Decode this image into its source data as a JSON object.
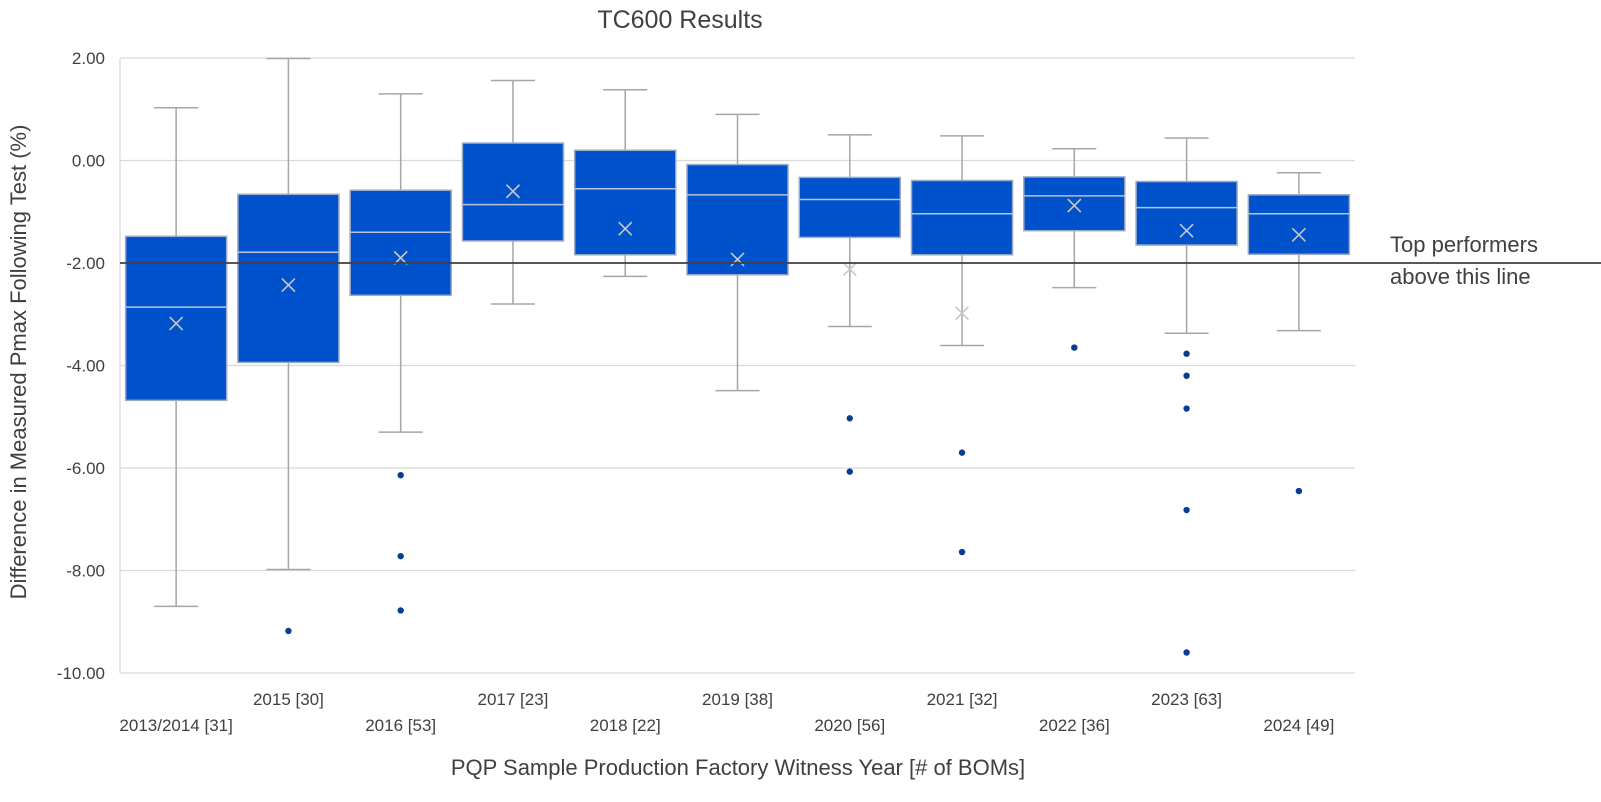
{
  "chart_data": {
    "type": "box",
    "title": "TC600 Results",
    "xlabel": "PQP Sample Production Factory Witness Year [# of BOMs]",
    "ylabel": "Difference in Measured Pmax Following Test (%)",
    "ylim": [
      -10,
      2
    ],
    "yticks": [
      "2.00",
      "0.00",
      "-2.00",
      "-4.00",
      "-6.00",
      "-8.00",
      "-10.00"
    ],
    "ytick_values": [
      2,
      0,
      -2,
      -4,
      -6,
      -8,
      -10
    ],
    "grid": true,
    "color": "#0052CC",
    "categories": [
      "2013/2014 [31]",
      "2015 [30]",
      "2016 [53]",
      "2017 [23]",
      "2018 [22]",
      "2019 [38]",
      "2020 [56]",
      "2021 [32]",
      "2022 [36]",
      "2023 [63]",
      "2024 [49]"
    ],
    "boxes": [
      {
        "whisker_low": -8.7,
        "q1": -4.68,
        "median": -2.86,
        "q3": -1.48,
        "whisker_high": 1.03,
        "mean": -3.18,
        "outliers": []
      },
      {
        "whisker_low": -7.98,
        "q1": -3.94,
        "median": -1.79,
        "q3": -0.66,
        "whisker_high": 1.99,
        "mean": -2.43,
        "outliers": [
          -9.18
        ]
      },
      {
        "whisker_low": -5.3,
        "q1": -2.63,
        "median": -1.4,
        "q3": -0.58,
        "whisker_high": 1.3,
        "mean": -1.9,
        "outliers": [
          -6.14,
          -7.72,
          -8.78
        ]
      },
      {
        "whisker_low": -2.8,
        "q1": -1.57,
        "median": -0.86,
        "q3": 0.34,
        "whisker_high": 1.56,
        "mean": -0.6,
        "outliers": []
      },
      {
        "whisker_low": -2.26,
        "q1": -1.84,
        "median": -0.55,
        "q3": 0.2,
        "whisker_high": 1.38,
        "mean": -1.33,
        "outliers": []
      },
      {
        "whisker_low": -4.49,
        "q1": -2.23,
        "median": -0.67,
        "q3": -0.08,
        "whisker_high": 0.9,
        "mean": -1.93,
        "outliers": []
      },
      {
        "whisker_low": -3.24,
        "q1": -1.5,
        "median": -0.76,
        "q3": -0.33,
        "whisker_high": 0.5,
        "mean": -2.12,
        "outliers": [
          -5.03,
          -6.07
        ]
      },
      {
        "whisker_low": -3.61,
        "q1": -1.84,
        "median": -1.04,
        "q3": -0.39,
        "whisker_high": 0.48,
        "mean": -2.98,
        "outliers": [
          -5.7,
          -7.64
        ]
      },
      {
        "whisker_low": -2.48,
        "q1": -1.37,
        "median": -0.69,
        "q3": -0.32,
        "whisker_high": 0.23,
        "mean": -0.88,
        "outliers": [
          -3.65
        ]
      },
      {
        "whisker_low": -3.37,
        "q1": -1.65,
        "median": -0.92,
        "q3": -0.41,
        "whisker_high": 0.44,
        "mean": -1.37,
        "outliers": [
          -3.77,
          -4.2,
          -4.84,
          -6.82,
          -9.6
        ]
      },
      {
        "whisker_low": -3.32,
        "q1": -1.83,
        "median": -1.04,
        "q3": -0.67,
        "whisker_high": -0.24,
        "mean": -1.45,
        "outliers": [
          -6.45
        ]
      }
    ],
    "reference_line": {
      "value": -2.0,
      "label_line1": "Top performers",
      "label_line2": "above this line"
    }
  }
}
